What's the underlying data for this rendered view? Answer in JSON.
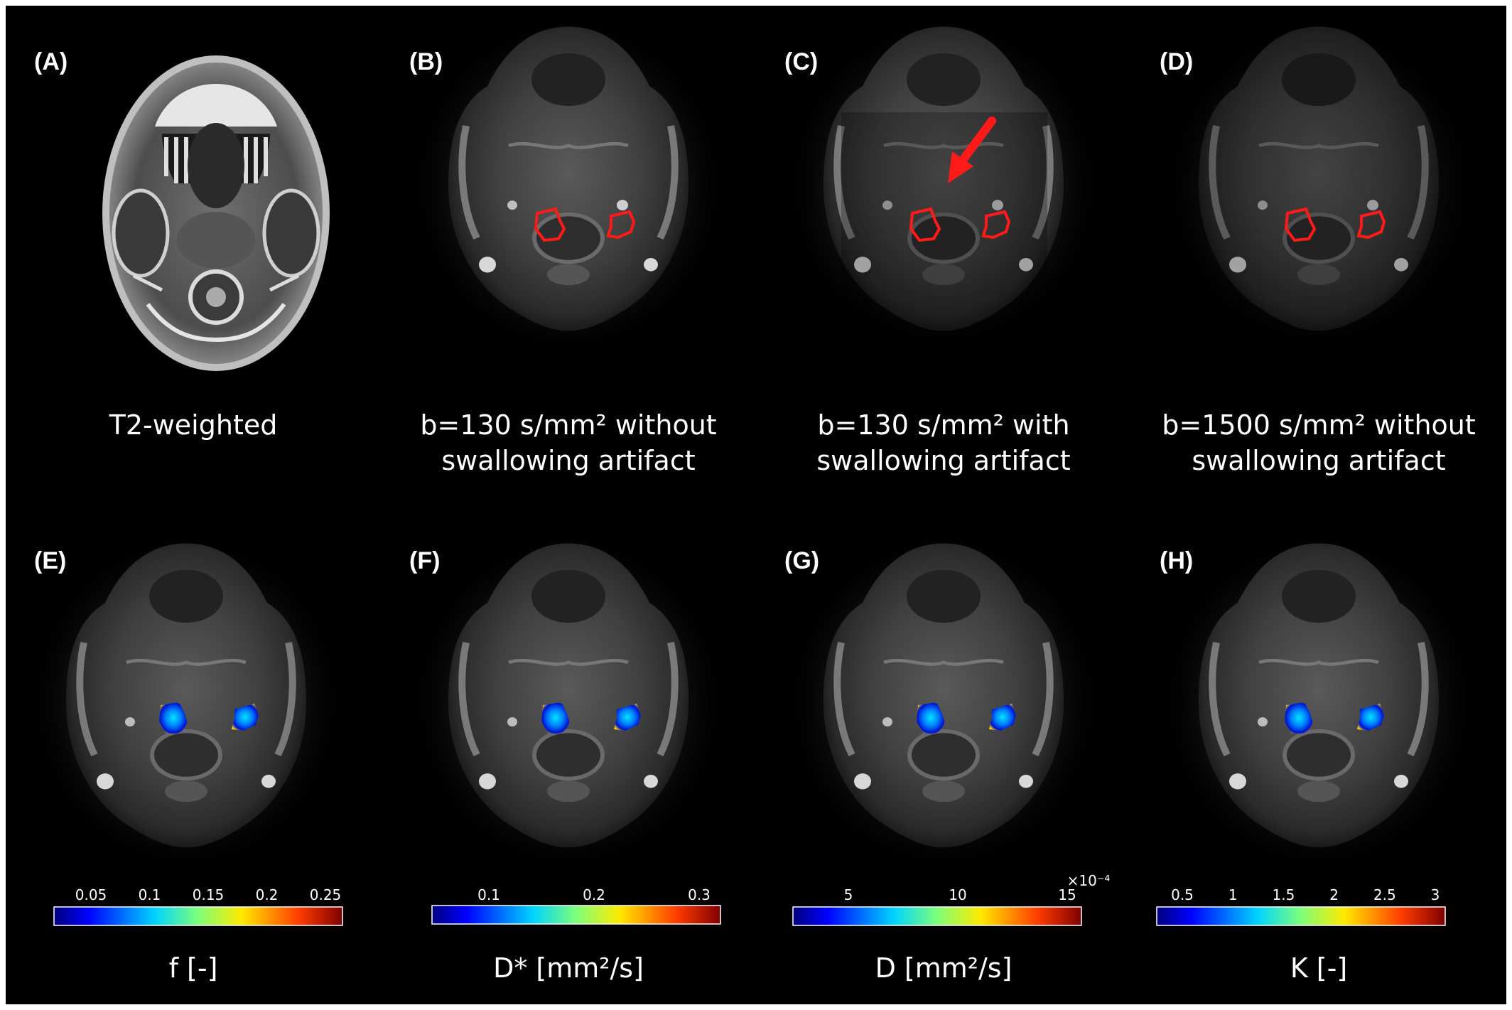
{
  "panels_top": [
    {
      "label": "(A)",
      "caption_l1": "T2-weighted",
      "caption_l2": ""
    },
    {
      "label": "(B)",
      "caption_l1": "b=130 s/mm² without",
      "caption_l2": "swallowing artifact"
    },
    {
      "label": "(C)",
      "caption_l1": "b=130 s/mm² with",
      "caption_l2": "swallowing artifact"
    },
    {
      "label": "(D)",
      "caption_l1": "b=1500 s/mm² without",
      "caption_l2": "swallowing artifact"
    }
  ],
  "panels_bottom": [
    {
      "label": "(E)",
      "title": "f [-]",
      "ticks": [
        "0.05",
        "0.1",
        "0.15",
        "0.2",
        "0.25"
      ],
      "multiplier": ""
    },
    {
      "label": "(F)",
      "title": "D* [mm²/s]",
      "ticks": [
        "0.1",
        "0.2",
        "0.3"
      ],
      "multiplier": ""
    },
    {
      "label": "(G)",
      "title": "D [mm²/s]",
      "ticks": [
        "5",
        "10",
        "15"
      ],
      "multiplier": "×10⁻⁴"
    },
    {
      "label": "(H)",
      "title": "K [-]",
      "ticks": [
        "0.5",
        "1",
        "1.5",
        "2",
        "2.5",
        "3"
      ],
      "multiplier": ""
    }
  ],
  "colors": {
    "background": "#000000",
    "roi": "#ff1a1a",
    "arrow": "#ff1a1a",
    "text": "#ffffff"
  },
  "icons": {
    "arrow": "red-arrow-icon"
  }
}
